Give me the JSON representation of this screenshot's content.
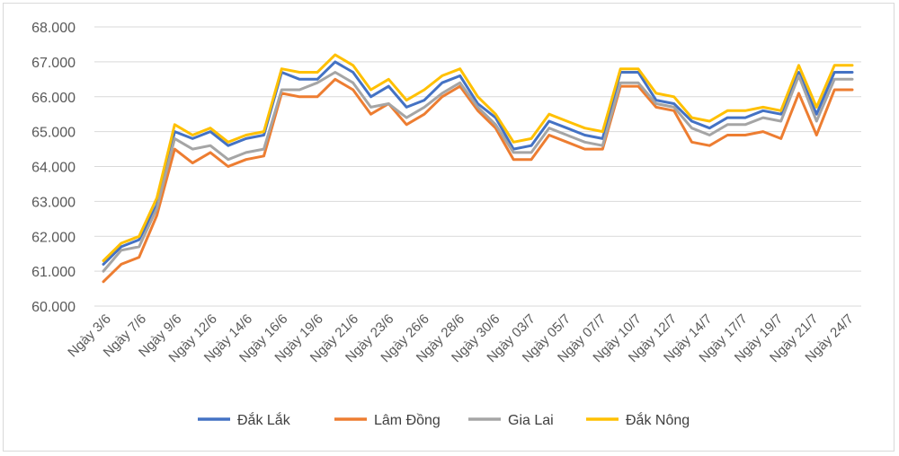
{
  "chart_data": {
    "type": "line",
    "title": "",
    "xlabel": "",
    "ylabel": "",
    "ylim": [
      60000,
      68000
    ],
    "y_ticks": [
      "60.000",
      "61.000",
      "62.000",
      "63.000",
      "64.000",
      "65.000",
      "66.000",
      "67.000",
      "68.000"
    ],
    "grid": true,
    "legend_position": "bottom",
    "x_tick_labels": [
      "Ngày 3/6",
      "Ngày 7/6",
      "Ngày 9/6",
      "Ngày 12/6",
      "Ngày 14/6",
      "Ngày 16/6",
      "Ngày 19/6",
      "Ngày 21/6",
      "Ngày 23/6",
      "Ngày 26/6",
      "Ngày 28/6",
      "Ngày 30/6",
      "Ngày 03/7",
      "Ngày 05/7",
      "Ngày 07/7",
      "Ngày 10/7",
      "Ngày 12/7",
      "Ngày 14/7",
      "Ngày 17/7",
      "Ngày 19/7",
      "Ngày 21/7",
      "Ngày 24/7"
    ],
    "series": [
      {
        "name": "Đắk Lắk",
        "color": "#4472c4",
        "values": [
          61200,
          61700,
          61900,
          62900,
          65000,
          64800,
          65000,
          64600,
          64800,
          64900,
          66700,
          66500,
          66500,
          67000,
          66700,
          66000,
          66300,
          65700,
          65900,
          66400,
          66600,
          65800,
          65400,
          64500,
          64600,
          65300,
          65100,
          64900,
          64800,
          66700,
          66700,
          65900,
          65800,
          65300,
          65100,
          65400,
          65400,
          65600,
          65500,
          66700,
          65500,
          66700,
          66700
        ]
      },
      {
        "name": "Lâm Đồng",
        "color": "#ed7d31",
        "values": [
          60700,
          61200,
          61400,
          62600,
          64500,
          64100,
          64400,
          64000,
          64200,
          64300,
          66100,
          66000,
          66000,
          66500,
          66200,
          65500,
          65800,
          65200,
          65500,
          66000,
          66300,
          65600,
          65100,
          64200,
          64200,
          64900,
          64700,
          64500,
          64500,
          66300,
          66300,
          65700,
          65600,
          64700,
          64600,
          64900,
          64900,
          65000,
          64800,
          66100,
          64900,
          66200,
          66200
        ]
      },
      {
        "name": "Gia Lai",
        "color": "#a5a5a5",
        "values": [
          61000,
          61600,
          61700,
          62800,
          64800,
          64500,
          64600,
          64200,
          64400,
          64500,
          66200,
          66200,
          66400,
          66700,
          66400,
          65700,
          65800,
          65400,
          65700,
          66100,
          66400,
          65700,
          65200,
          64400,
          64400,
          65100,
          64900,
          64700,
          64600,
          66400,
          66400,
          65800,
          65700,
          65100,
          64900,
          65200,
          65200,
          65400,
          65300,
          66600,
          65300,
          66500,
          66500
        ]
      },
      {
        "name": "Đắk Nông",
        "color": "#ffc000",
        "values": [
          61300,
          61800,
          62000,
          63100,
          65200,
          64900,
          65100,
          64700,
          64900,
          65000,
          66800,
          66700,
          66700,
          67200,
          66900,
          66200,
          66500,
          65900,
          66200,
          66600,
          66800,
          66000,
          65500,
          64700,
          64800,
          65500,
          65300,
          65100,
          65000,
          66800,
          66800,
          66100,
          66000,
          65400,
          65300,
          65600,
          65600,
          65700,
          65600,
          66900,
          65700,
          66900,
          66900
        ]
      }
    ]
  }
}
